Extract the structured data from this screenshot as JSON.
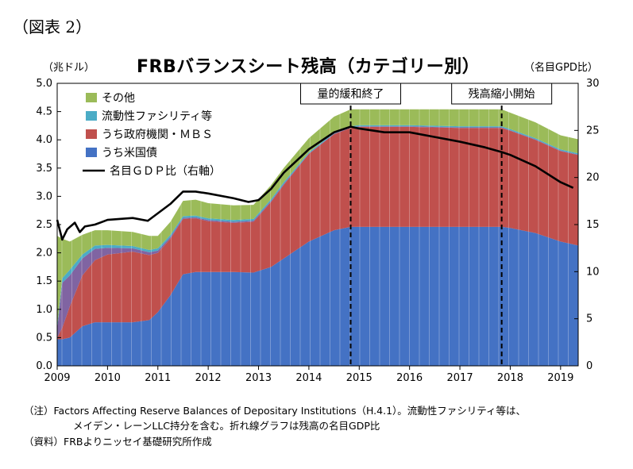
{
  "figure_label": "（図表 2）",
  "notes": {
    "note1": "（注）Factors Affecting Reserve Balances of Depositary Institutions（H.4.1）。流動性ファシリティ等は、",
    "note2": "メイデン・レーンLLC持分を含む。折れ線グラフは残高の名目GDP比",
    "source": "（資料）FRBよりニッセイ基礎研究所作成"
  },
  "colors": {
    "treasuries": "#4472c4",
    "liquidity": "#4bacc6",
    "agency": "#c0504d",
    "other": "#9bbb59",
    "purple": "#8064a2",
    "gdp_line": "#000000"
  },
  "chart_data": {
    "type": "area",
    "title": "FRBバランスシート残高（カテゴリー別）",
    "ylabel_left": "（兆ドル）",
    "ylabel_right": "（名目GPD比）",
    "ylim": [
      0,
      5.0
    ],
    "y2lim": [
      0,
      30
    ],
    "yticks": [
      "0.0",
      "0.5",
      "1.0",
      "1.5",
      "2.0",
      "2.5",
      "3.0",
      "3.5",
      "4.0",
      "4.5",
      "5.0"
    ],
    "y2ticks": [
      "0",
      "5",
      "10",
      "15",
      "20",
      "25",
      "30"
    ],
    "xticks": [
      "2009",
      "2010",
      "2011",
      "2012",
      "2013",
      "2014",
      "2015",
      "2016",
      "2017",
      "2018",
      "2019"
    ],
    "xlim": [
      2009.0,
      2019.35
    ],
    "legend": [
      {
        "key": "other",
        "label": "その他"
      },
      {
        "key": "liquidity",
        "label": "流動性ファシリティ等"
      },
      {
        "key": "agency",
        "label": "うち政府機関・ＭＢＳ"
      },
      {
        "key": "treasuries",
        "label": "うち米国債"
      },
      {
        "key": "gdp",
        "label": "名目ＧＤＰ比（右軸）"
      }
    ],
    "annotations": [
      {
        "label": "量的緩和終了",
        "x": 2014.83
      },
      {
        "label": "残高縮小開始",
        "x": 2017.83
      }
    ],
    "x": [
      2009.0,
      2009.1,
      2009.25,
      2009.5,
      2009.75,
      2010.0,
      2010.5,
      2010.83,
      2011.0,
      2011.25,
      2011.5,
      2011.75,
      2012.0,
      2012.5,
      2012.9,
      2013.25,
      2013.5,
      2014.0,
      2014.5,
      2014.83,
      2015.0,
      2016.0,
      2017.0,
      2017.83,
      2018.0,
      2018.5,
      2019.0,
      2019.35
    ],
    "series": [
      {
        "key": "treasuries",
        "name": "うち米国債",
        "values": [
          0.47,
          0.47,
          0.5,
          0.7,
          0.77,
          0.77,
          0.77,
          0.81,
          0.95,
          1.25,
          1.62,
          1.66,
          1.66,
          1.66,
          1.65,
          1.75,
          1.9,
          2.2,
          2.4,
          2.46,
          2.46,
          2.46,
          2.46,
          2.46,
          2.44,
          2.35,
          2.2,
          2.13
        ]
      },
      {
        "key": "agency",
        "name": "うち政府機関・ＭＢＳ",
        "values": [
          0.03,
          0.2,
          0.55,
          0.9,
          1.1,
          1.2,
          1.25,
          1.15,
          1.05,
          1.0,
          0.98,
          0.95,
          0.9,
          0.87,
          0.9,
          1.15,
          1.3,
          1.55,
          1.7,
          1.75,
          1.77,
          1.77,
          1.75,
          1.75,
          1.72,
          1.65,
          1.6,
          1.6
        ]
      },
      {
        "key": "purple",
        "name": "",
        "values": [
          0.15,
          0.8,
          0.55,
          0.3,
          0.2,
          0.12,
          0.06,
          0.05,
          0.04,
          0.03,
          0.02,
          0.02,
          0.02,
          0.02,
          0.02,
          0.02,
          0.02,
          0.01,
          0.01,
          0.01,
          0.01,
          0.01,
          0.01,
          0.01,
          0.01,
          0.01,
          0.01,
          0.01
        ]
      },
      {
        "key": "liquidity",
        "name": "流動性ファシリティ等",
        "values": [
          0.05,
          0.08,
          0.1,
          0.07,
          0.06,
          0.05,
          0.04,
          0.04,
          0.04,
          0.04,
          0.03,
          0.03,
          0.03,
          0.03,
          0.03,
          0.03,
          0.03,
          0.02,
          0.02,
          0.02,
          0.02,
          0.02,
          0.02,
          0.02,
          0.02,
          0.02,
          0.02,
          0.02
        ]
      },
      {
        "key": "other",
        "name": "その他",
        "values": [
          1.6,
          0.7,
          0.5,
          0.35,
          0.27,
          0.26,
          0.25,
          0.25,
          0.22,
          0.23,
          0.27,
          0.28,
          0.27,
          0.26,
          0.25,
          0.25,
          0.25,
          0.25,
          0.28,
          0.3,
          0.28,
          0.28,
          0.3,
          0.3,
          0.29,
          0.28,
          0.25,
          0.25
        ]
      }
    ],
    "gdp_ratio": {
      "name": "名目ＧＤＰ比（右軸）",
      "x": [
        2009.0,
        2009.1,
        2009.2,
        2009.35,
        2009.45,
        2009.55,
        2009.75,
        2010.0,
        2010.5,
        2010.8,
        2011.0,
        2011.25,
        2011.5,
        2011.75,
        2012.0,
        2012.5,
        2012.8,
        2013.0,
        2013.25,
        2013.5,
        2014.0,
        2014.5,
        2014.83,
        2015.0,
        2015.5,
        2016.0,
        2016.5,
        2017.0,
        2017.5,
        2017.83,
        2018.0,
        2018.5,
        2019.0,
        2019.25
      ],
      "values": [
        15.5,
        13.4,
        14.5,
        15.2,
        14.2,
        14.8,
        15.0,
        15.5,
        15.7,
        15.4,
        16.2,
        17.2,
        18.5,
        18.5,
        18.3,
        17.8,
        17.4,
        17.6,
        18.8,
        20.5,
        23.0,
        24.8,
        25.4,
        25.2,
        24.8,
        24.8,
        24.3,
        23.8,
        23.2,
        22.7,
        22.4,
        21.2,
        19.5,
        18.9
      ]
    }
  }
}
